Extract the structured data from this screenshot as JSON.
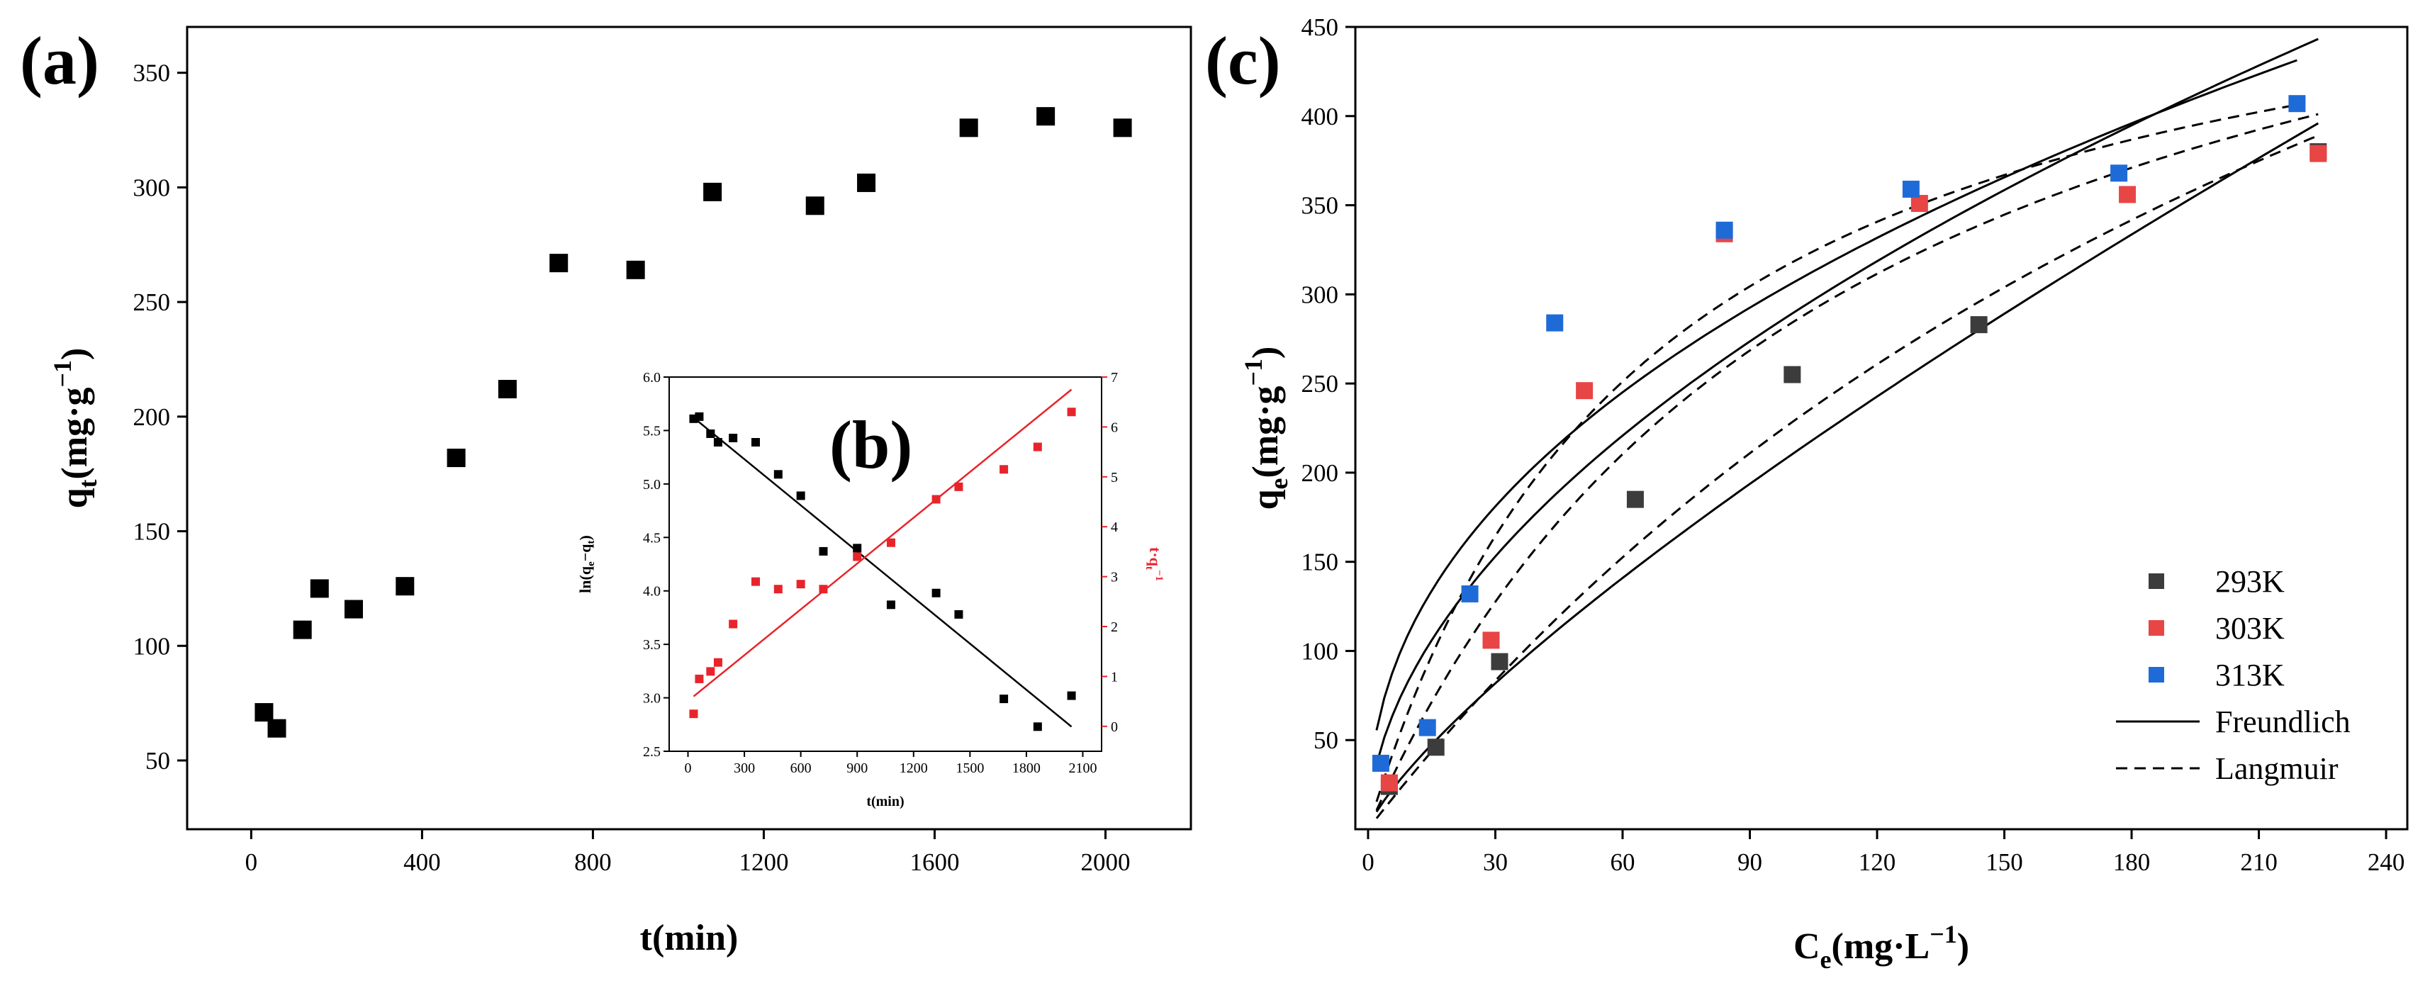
{
  "chart_data": [
    {
      "panel": "(a)",
      "type": "scatter",
      "xlabel": "t(min)",
      "ylabel_base": "q",
      "ylabel_sub": "t",
      "ylabel_unit": "(mg·g",
      "ylabel_sup": "−1",
      "ylabel_close": ")",
      "xlim": [
        -150,
        2200
      ],
      "ylim": [
        20,
        370
      ],
      "xticks": [
        "0",
        "400",
        "800",
        "1200",
        "1600",
        "2000"
      ],
      "yticks": [
        "50",
        "100",
        "150",
        "200",
        "250",
        "300",
        "350"
      ],
      "series": [
        {
          "name": "qt",
          "color": "#000000",
          "x": [
            30,
            60,
            120,
            160,
            240,
            360,
            480,
            600,
            720,
            900,
            1080,
            1320,
            1440,
            1680,
            1860,
            2040
          ],
          "y": [
            71,
            64,
            107,
            125,
            116,
            126,
            182,
            212,
            267,
            264,
            298,
            292,
            302,
            326,
            331,
            326
          ]
        }
      ]
    },
    {
      "panel": "(b)",
      "type": "scatter",
      "xlabel": "t(min)",
      "ylabel_left": "ln(q",
      "ylabel_left_sub1": "e",
      "ylabel_left_mid": "−q",
      "ylabel_left_sub2": "t",
      "ylabel_left_close": ")",
      "ylabel_right": "t·q",
      "ylabel_right_sub": "t",
      "ylabel_right_sup": "−1",
      "xlim": [
        -100,
        2200
      ],
      "ylim_left": [
        2.5,
        6.0
      ],
      "ylim_right": [
        -0.5,
        7
      ],
      "xticks": [
        "0",
        "300",
        "600",
        "900",
        "1200",
        "1500",
        "1800",
        "2100"
      ],
      "yticks_left": [
        "2.5",
        "3.0",
        "3.5",
        "4.0",
        "4.5",
        "5.0",
        "5.5",
        "6.0"
      ],
      "yticks_right": [
        "0",
        "1",
        "2",
        "3",
        "4",
        "5",
        "6",
        "7"
      ],
      "series": [
        {
          "name": "ln(qe-qt)",
          "axis": "left",
          "color": "#000000",
          "x": [
            30,
            60,
            120,
            160,
            240,
            360,
            480,
            600,
            720,
            900,
            1080,
            1320,
            1440,
            1680,
            1860,
            2040
          ],
          "y": [
            5.61,
            5.63,
            5.47,
            5.39,
            5.43,
            5.39,
            5.09,
            4.89,
            4.37,
            4.4,
            3.87,
            3.98,
            3.78,
            2.99,
            2.73,
            3.02
          ],
          "fit": [
            [
              30,
              5.62
            ],
            [
              2040,
              2.73
            ]
          ]
        },
        {
          "name": "t/qt",
          "axis": "right",
          "color": "#e8242b",
          "x": [
            30,
            60,
            120,
            160,
            240,
            360,
            480,
            600,
            720,
            900,
            1080,
            1320,
            1440,
            1680,
            1860,
            2040
          ],
          "y": [
            0.25,
            0.95,
            1.1,
            1.28,
            2.05,
            2.9,
            2.75,
            2.85,
            2.75,
            3.4,
            3.68,
            4.55,
            4.8,
            5.15,
            5.6,
            6.3
          ],
          "fit": [
            [
              30,
              0.6
            ],
            [
              2040,
              6.75
            ]
          ]
        }
      ]
    },
    {
      "panel": "(c)",
      "type": "scatter",
      "xlabel_base": "C",
      "xlabel_sub": "e",
      "xlabel_unit": "(mg·L",
      "xlabel_sup": "−1",
      "xlabel_close": ")",
      "ylabel_base": "q",
      "ylabel_sub": "e",
      "ylabel_unit": "(mg·g",
      "ylabel_sup": "−1",
      "ylabel_close": ")",
      "xlim": [
        -3,
        245
      ],
      "ylim": [
        0,
        450
      ],
      "xticks": [
        "0",
        "30",
        "60",
        "90",
        "120",
        "150",
        "180",
        "210",
        "240"
      ],
      "yticks": [
        "50",
        "100",
        "150",
        "200",
        "250",
        "300",
        "350",
        "400",
        "450"
      ],
      "legend_position": "lower-right",
      "series": [
        {
          "name": "293K",
          "color": "#3c3c3c",
          "x": [
            5,
            16,
            31,
            63,
            100,
            144,
            224
          ],
          "y": [
            24,
            46,
            94,
            185,
            255,
            283,
            380
          ],
          "freundlich": {
            "K": 5.68,
            "n": 1.275,
            "xmax": 224
          },
          "langmuir": {
            "qm": 900,
            "KL": 0.0034,
            "xmax": 224
          }
        },
        {
          "name": "303K",
          "color": "#e84545",
          "x": [
            5,
            29,
            51,
            84,
            130,
            179,
            224
          ],
          "y": [
            26,
            106,
            246,
            334,
            351,
            356,
            379
          ],
          "freundlich": {
            "K": 25.3,
            "n": 1.89,
            "xmax": 224
          },
          "langmuir": {
            "qm": 600,
            "KL": 0.009,
            "xmax": 224
          }
        },
        {
          "name": "313K",
          "color": "#1e6bd8",
          "x": [
            3,
            14,
            24,
            44,
            84,
            128,
            177,
            219
          ],
          "y": [
            37,
            57,
            132,
            284,
            336,
            359,
            368,
            407
          ],
          "freundlich": {
            "K": 41.0,
            "n": 2.29,
            "xmax": 219
          },
          "langmuir": {
            "qm": 530,
            "KL": 0.015,
            "xmax": 219
          }
        }
      ],
      "fit_legend": [
        {
          "name": "Freundlich",
          "style": "solid"
        },
        {
          "name": "Langmuir",
          "style": "dashed"
        }
      ]
    }
  ]
}
